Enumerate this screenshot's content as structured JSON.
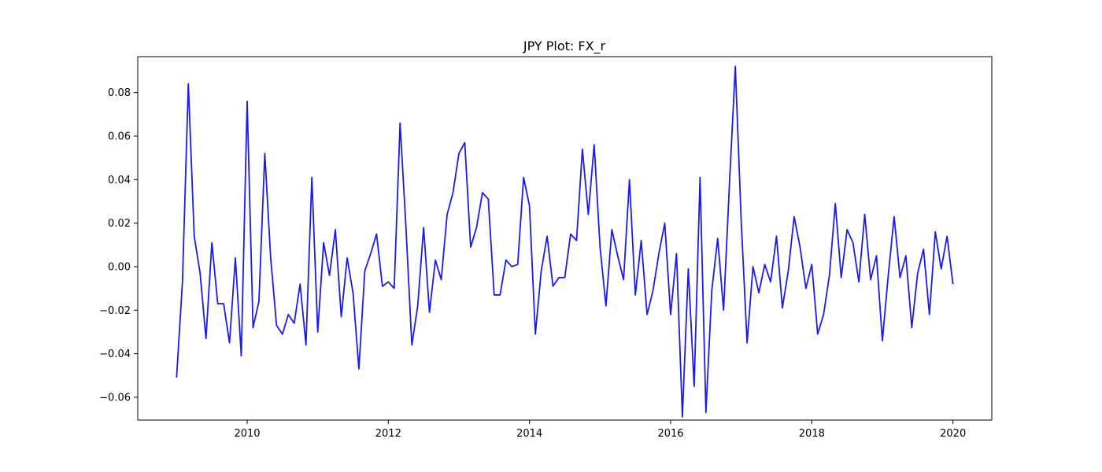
{
  "chart_data": {
    "type": "line",
    "title": "JPY Plot: FX_r",
    "xlabel": "",
    "ylabel": "",
    "xlim": [
      2008.45,
      2020.55
    ],
    "ylim": [
      -0.0705,
      0.0965
    ],
    "grid": false,
    "line_color": "#1a1aee",
    "x_ticks": [
      2010,
      2012,
      2014,
      2016,
      2018,
      2020
    ],
    "x_tick_labels": [
      "2010",
      "2012",
      "2014",
      "2016",
      "2018",
      "2020"
    ],
    "y_ticks": [
      -0.06,
      -0.04,
      -0.02,
      0.0,
      0.02,
      0.04,
      0.06,
      0.08
    ],
    "y_tick_labels": [
      "−0.06",
      "−0.04",
      "−0.02",
      "0.00",
      "0.02",
      "0.04",
      "0.06",
      "0.08"
    ],
    "series": [
      {
        "start_year": 2009,
        "x_step_years": 0.08333,
        "values": [
          -0.051,
          -0.007,
          0.084,
          0.014,
          -0.003,
          -0.033,
          0.011,
          -0.017,
          -0.017,
          -0.035,
          0.004,
          -0.041,
          0.076,
          -0.028,
          -0.016,
          0.052,
          0.004,
          -0.027,
          -0.031,
          -0.022,
          -0.026,
          -0.008,
          -0.036,
          0.041,
          -0.03,
          0.011,
          -0.004,
          0.017,
          -0.023,
          0.004,
          -0.012,
          -0.047,
          -0.002,
          0.006,
          0.015,
          -0.009,
          -0.007,
          -0.01,
          0.066,
          0.018,
          -0.036,
          -0.018,
          0.018,
          -0.021,
          0.003,
          -0.006,
          0.024,
          0.034,
          0.052,
          0.057,
          0.009,
          0.018,
          0.034,
          0.031,
          -0.013,
          -0.013,
          0.003,
          0.0,
          0.001,
          0.041,
          0.028,
          -0.031,
          -0.002,
          0.014,
          -0.009,
          -0.005,
          -0.005,
          0.015,
          0.012,
          0.054,
          0.024,
          0.056,
          0.009,
          -0.018,
          0.017,
          0.005,
          -0.006,
          0.04,
          -0.013,
          0.012,
          -0.022,
          -0.011,
          0.006,
          0.02,
          -0.022,
          0.006,
          -0.069,
          -0.001,
          -0.055,
          0.041,
          -0.067,
          -0.011,
          0.013,
          -0.02,
          0.038,
          0.092,
          0.021,
          -0.035,
          0.0,
          -0.012,
          0.001,
          -0.007,
          0.014,
          -0.019,
          -0.002,
          0.023,
          0.009,
          -0.01,
          0.001,
          -0.031,
          -0.022,
          -0.004,
          0.029,
          -0.005,
          0.017,
          0.011,
          -0.007,
          0.024,
          -0.006,
          0.005,
          -0.034,
          -0.004,
          0.023,
          -0.005,
          0.005,
          -0.028,
          -0.003,
          0.008,
          -0.022,
          0.016,
          -0.001,
          0.014,
          -0.008
        ]
      }
    ]
  }
}
